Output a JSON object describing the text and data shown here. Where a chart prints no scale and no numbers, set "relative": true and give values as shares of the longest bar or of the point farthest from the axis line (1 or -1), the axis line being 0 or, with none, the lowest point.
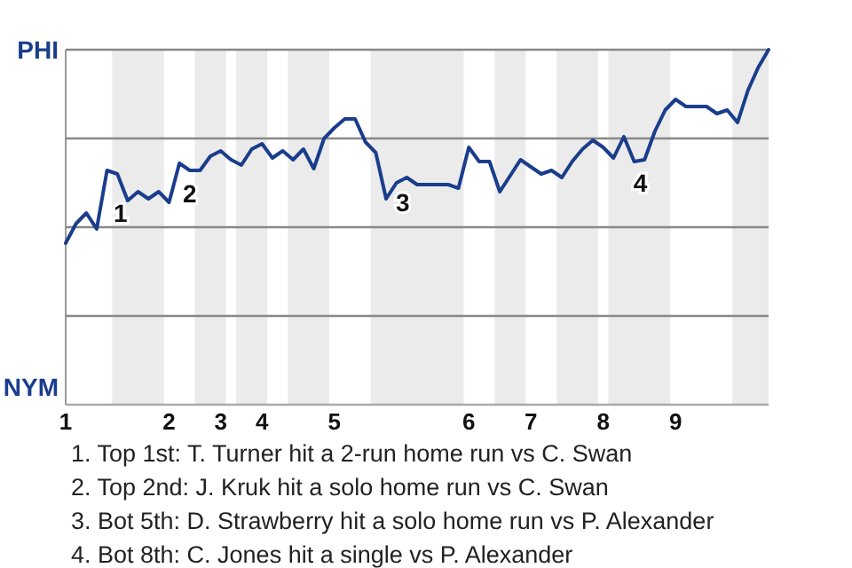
{
  "chart_data": {
    "type": "line",
    "relative": true,
    "categories": [
      "1",
      null,
      null,
      null,
      null,
      null,
      null,
      null,
      null,
      null,
      "2",
      null,
      null,
      null,
      null,
      "3",
      null,
      null,
      null,
      "4",
      null,
      null,
      null,
      null,
      null,
      null,
      "5",
      null,
      null,
      null,
      null,
      null,
      null,
      null,
      null,
      null,
      null,
      null,
      null,
      "6",
      null,
      null,
      null,
      null,
      null,
      "7",
      null,
      null,
      null,
      null,
      null,
      null,
      "8",
      null,
      null,
      null,
      null,
      null,
      null,
      "9",
      null,
      null,
      null,
      null,
      null,
      null,
      null,
      null,
      null
    ],
    "series": [
      {
        "color": "#1a3d8c",
        "values": [
          0.455,
          0.51,
          0.54,
          0.495,
          0.66,
          0.65,
          0.575,
          0.6,
          0.58,
          0.6,
          0.57,
          0.68,
          0.66,
          0.66,
          0.7,
          0.715,
          0.69,
          0.675,
          0.72,
          0.735,
          0.695,
          0.715,
          0.69,
          0.72,
          0.665,
          0.75,
          0.78,
          0.805,
          0.805,
          0.74,
          0.71,
          0.58,
          0.625,
          0.64,
          0.62,
          0.62,
          0.62,
          0.62,
          0.61,
          0.725,
          0.685,
          0.685,
          0.6,
          0.645,
          0.69,
          0.67,
          0.65,
          0.66,
          0.64,
          0.685,
          0.72,
          0.745,
          0.725,
          0.695,
          0.755,
          0.685,
          0.69,
          0.77,
          0.83,
          0.86,
          0.84,
          0.84,
          0.84,
          0.82,
          0.83,
          0.795,
          0.885,
          0.95,
          1
        ]
      }
    ],
    "ref_lines": [
      {
        "axis": "y",
        "value": 1,
        "label": "PHI",
        "color": "#888888"
      },
      {
        "axis": "y",
        "value": 0.75,
        "color": "#888888"
      },
      {
        "axis": "y",
        "value": 0.5,
        "color": "#888888"
      },
      {
        "axis": "y",
        "value": 0.25,
        "color": "#888888"
      }
    ],
    "ylabel": "NYM",
    "annotations": [
      "1",
      "2",
      "3",
      "4",
      "1. Top 1st: T. Turner hit a 2-run home run vs C. Swan",
      "2. Top 2nd: J. Kruk hit a solo home run vs C. Swan",
      "3. Bot 5th: D. Strawberry hit a solo home run vs P. Alexander",
      "4. Bot 8th: C. Jones hit a single vs P. Alexander"
    ]
  }
}
